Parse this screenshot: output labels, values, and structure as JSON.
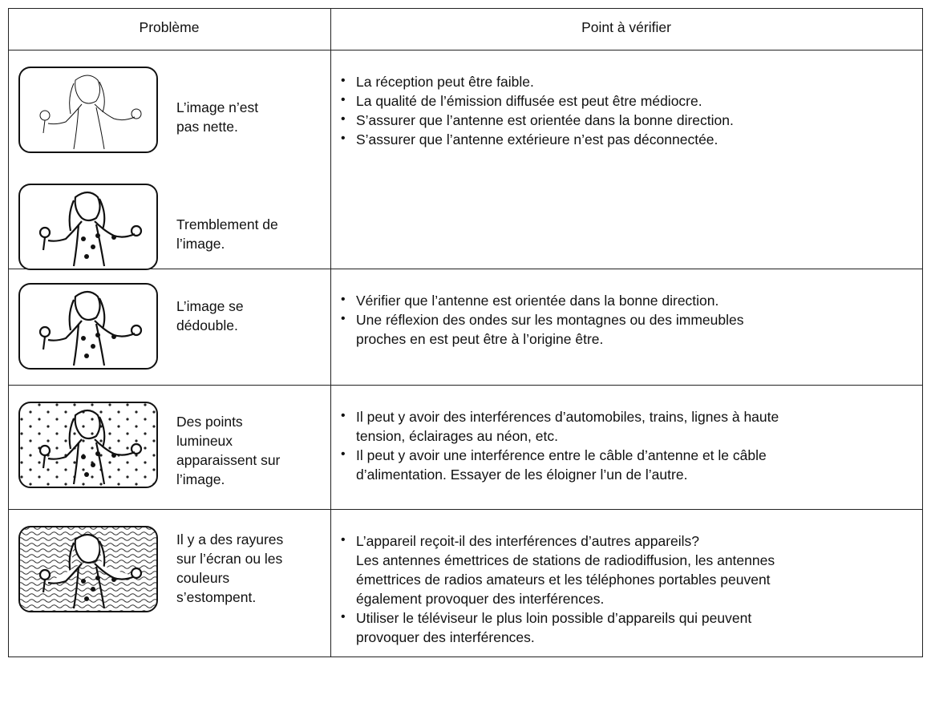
{
  "table": {
    "header": [
      "Problème",
      "Point à vérifier"
    ],
    "rows": [
      {
        "problems": [
          [
            "L’image n’est",
            "pas nette."
          ],
          [
            "Tremblement de",
            "l’image."
          ]
        ],
        "checks": [
          [
            "La réception peut être faible."
          ],
          [
            "La qualité de l’émission diffusée est peut être médiocre."
          ],
          [
            "S’assurer que l’antenne est orientée dans la bonne direction."
          ],
          [
            "S’assurer que l’antenne extérieure n’est pas déconnectée."
          ]
        ]
      },
      {
        "problems": [
          [
            "L’image se",
            "dédouble."
          ]
        ],
        "checks": [
          [
            "Vérifier que l’antenne est orientée dans la bonne direction."
          ],
          [
            "Une réflexion des ondes sur les montagnes ou des immeubles",
            "proches en est peut être à l’origine être."
          ]
        ]
      },
      {
        "problems": [
          [
            "Des points",
            "lumineux",
            "apparaissent sur",
            "l’image."
          ]
        ],
        "checks": [
          [
            "Il peut y avoir des interférences d’automobiles, trains, lignes à haute",
            "tension, éclairages au néon, etc."
          ],
          [
            "Il peut y avoir une interférence entre le câble d’antenne et le câble",
            "d’alimentation. Essayer de les éloigner l’un de l’autre."
          ]
        ]
      },
      {
        "problems": [
          [
            "Il y a des rayures",
            "sur l’écran ou les",
            "couleurs",
            "s’estompent."
          ]
        ],
        "checks": [
          [
            "L’appareil reçoit-il des interférences d’autres appareils?",
            "Les antennes émettrices de stations de radiodiffusion, les antennes",
            "émettrices de radios amateurs et les téléphones portables peuvent",
            "également provoquer des interférences."
          ],
          [
            "Utiliser le téléviseur le plus loin possible d’appareils qui peuvent",
            "provoquer des interférences."
          ]
        ]
      }
    ]
  }
}
